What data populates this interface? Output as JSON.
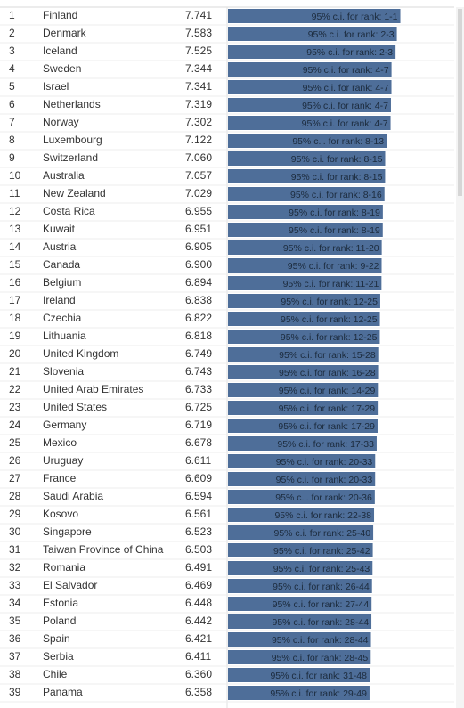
{
  "chart_data": {
    "type": "bar",
    "orientation": "horizontal",
    "color": "#4e6e99",
    "xlim": [
      0,
      8
    ],
    "ranks": [
      1,
      2,
      3,
      4,
      5,
      6,
      7,
      8,
      9,
      10,
      11,
      12,
      13,
      14,
      15,
      16,
      17,
      18,
      19,
      20,
      21,
      22,
      23,
      24,
      25,
      26,
      27,
      28,
      29,
      30,
      31,
      32,
      33,
      34,
      35,
      36,
      37,
      38,
      39
    ],
    "categories": [
      "Finland",
      "Denmark",
      "Iceland",
      "Sweden",
      "Israel",
      "Netherlands",
      "Norway",
      "Luxembourg",
      "Switzerland",
      "Australia",
      "New Zealand",
      "Costa Rica",
      "Kuwait",
      "Austria",
      "Canada",
      "Belgium",
      "Ireland",
      "Czechia",
      "Lithuania",
      "United Kingdom",
      "Slovenia",
      "United Arab Emirates",
      "United States",
      "Germany",
      "Mexico",
      "Uruguay",
      "France",
      "Saudi Arabia",
      "Kosovo",
      "Singapore",
      "Taiwan Province of China",
      "Romania",
      "El Salvador",
      "Estonia",
      "Poland",
      "Spain",
      "Serbia",
      "Chile",
      "Panama"
    ],
    "values": [
      7.741,
      7.583,
      7.525,
      7.344,
      7.341,
      7.319,
      7.302,
      7.122,
      7.06,
      7.057,
      7.029,
      6.955,
      6.951,
      6.905,
      6.9,
      6.894,
      6.838,
      6.822,
      6.818,
      6.749,
      6.743,
      6.733,
      6.725,
      6.719,
      6.678,
      6.611,
      6.609,
      6.594,
      6.561,
      6.523,
      6.503,
      6.491,
      6.469,
      6.448,
      6.442,
      6.421,
      6.411,
      6.36,
      6.358
    ],
    "value_labels": [
      "7.741",
      "7.583",
      "7.525",
      "7.344",
      "7.341",
      "7.319",
      "7.302",
      "7.122",
      "7.060",
      "7.057",
      "7.029",
      "6.955",
      "6.951",
      "6.905",
      "6.900",
      "6.894",
      "6.838",
      "6.822",
      "6.818",
      "6.749",
      "6.743",
      "6.733",
      "6.725",
      "6.719",
      "6.678",
      "6.611",
      "6.609",
      "6.594",
      "6.561",
      "6.523",
      "6.503",
      "6.491",
      "6.469",
      "6.448",
      "6.442",
      "6.421",
      "6.411",
      "6.360",
      "6.358"
    ],
    "bar_labels": [
      "95% c.i. for rank: 1-1",
      "95% c.i. for rank: 2-3",
      "95% c.i. for rank: 2-3",
      "95% c.i. for rank: 4-7",
      "95% c.i. for rank: 4-7",
      "95% c.i. for rank: 4-7",
      "95% c.i. for rank: 4-7",
      "95% c.i. for rank: 8-13",
      "95% c.i. for rank: 8-15",
      "95% c.i. for rank: 8-15",
      "95% c.i. for rank: 8-16",
      "95% c.i. for rank: 8-19",
      "95% c.i. for rank: 8-19",
      "95% c.i. for rank: 11-20",
      "95% c.i. for rank: 9-22",
      "95% c.i. for rank: 11-21",
      "95% c.i. for rank: 12-25",
      "95% c.i. for rank: 12-25",
      "95% c.i. for rank: 12-25",
      "95% c.i. for rank: 15-28",
      "95% c.i. for rank: 16-28",
      "95% c.i. for rank: 14-29",
      "95% c.i. for rank: 17-29",
      "95% c.i. for rank: 17-29",
      "95% c.i. for rank: 17-33",
      "95% c.i. for rank: 20-33",
      "95% c.i. for rank: 20-33",
      "95% c.i. for rank: 20-36",
      "95% c.i. for rank: 22-38",
      "95% c.i. for rank: 25-40",
      "95% c.i. for rank: 25-42",
      "95% c.i. for rank: 25-43",
      "95% c.i. for rank: 26-44",
      "95% c.i. for rank: 27-44",
      "95% c.i. for rank: 28-44",
      "95% c.i. for rank: 28-44",
      "95% c.i. for rank: 28-45",
      "95% c.i. for rank: 31-48",
      "95% c.i. for rank: 29-49"
    ]
  }
}
